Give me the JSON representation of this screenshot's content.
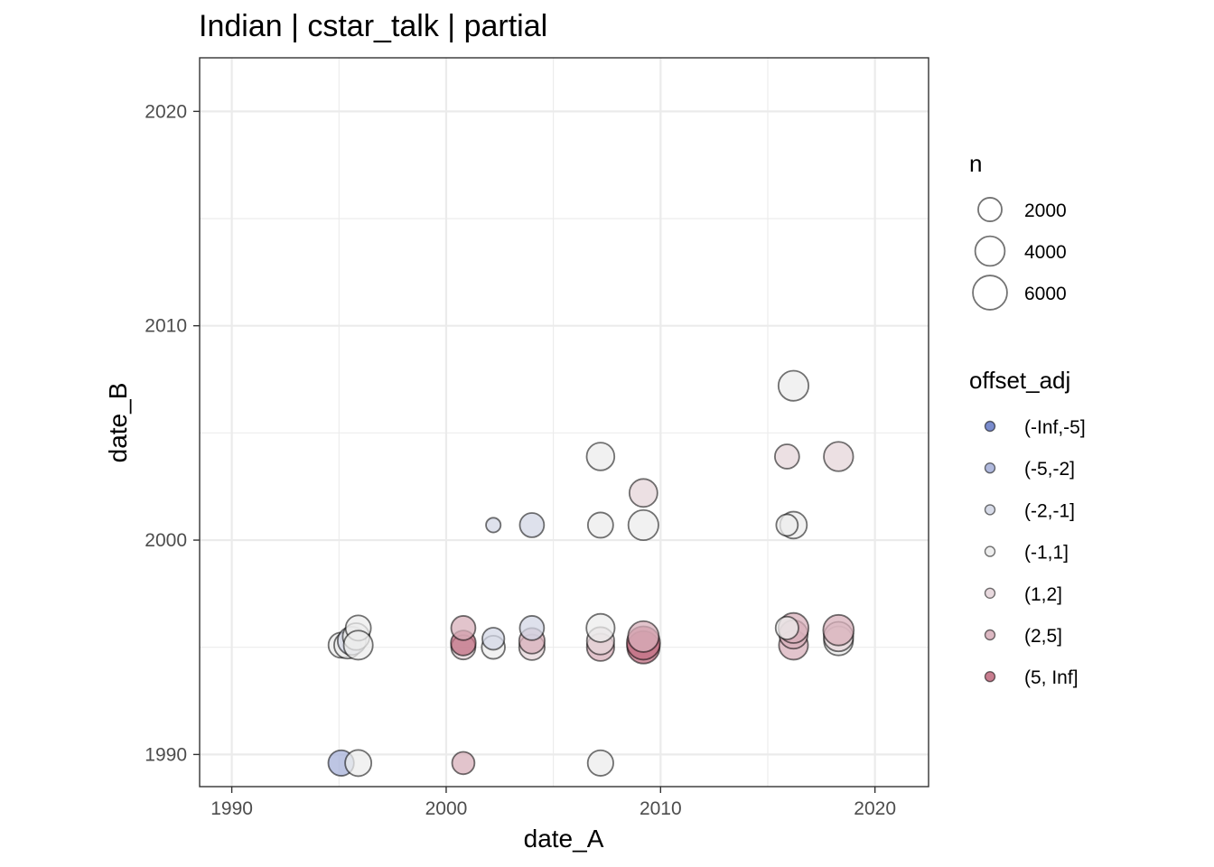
{
  "chart_data": {
    "type": "scatter",
    "title": "Indian | cstar_talk | partial",
    "xlabel": "date_A",
    "ylabel": "date_B",
    "xlim": [
      1988.5,
      2022.5
    ],
    "ylim": [
      1988.5,
      2022.5
    ],
    "x_ticks": [
      1990,
      2000,
      2010,
      2020
    ],
    "y_ticks": [
      1990,
      2000,
      2010,
      2020
    ],
    "grid": true,
    "size_legend": {
      "title": "n",
      "entries": [
        {
          "label": "2000",
          "value": 2000
        },
        {
          "label": "4000",
          "value": 4000
        },
        {
          "label": "6000",
          "value": 6000
        }
      ]
    },
    "color_legend": {
      "title": "offset_adj",
      "entries": [
        {
          "label": "(-Inf,-5]",
          "color": "#6b80c8"
        },
        {
          "label": "(-5,-2]",
          "color": "#a7b1d9"
        },
        {
          "label": "(-2,-1]",
          "color": "#d3d7e6"
        },
        {
          "label": "(-1,1]",
          "color": "#ececec"
        },
        {
          "label": "(1,2]",
          "color": "#e6d5da"
        },
        {
          "label": "(2,5]",
          "color": "#d8b0bb"
        },
        {
          "label": "(5, Inf]",
          "color": "#c26f83"
        }
      ]
    },
    "points": [
      {
        "x": 1995.1,
        "y": 1995.1,
        "n": 2500,
        "group": "(-1,1]"
      },
      {
        "x": 1995.4,
        "y": 1995.1,
        "n": 3000,
        "group": "(-1,1]"
      },
      {
        "x": 1995.6,
        "y": 1995.3,
        "n": 3500,
        "group": "(-2,-1]"
      },
      {
        "x": 1995.8,
        "y": 1995.5,
        "n": 3000,
        "group": "(-1,1]"
      },
      {
        "x": 1995.9,
        "y": 1995.9,
        "n": 2500,
        "group": "(-1,1]"
      },
      {
        "x": 1995.9,
        "y": 1995.1,
        "n": 3800,
        "group": "(-1,1]"
      },
      {
        "x": 1995.1,
        "y": 1989.6,
        "n": 2600,
        "group": "(-5,-2]"
      },
      {
        "x": 1995.9,
        "y": 1989.6,
        "n": 2800,
        "group": "(-1,1]"
      },
      {
        "x": 2000.8,
        "y": 1995.0,
        "n": 2200,
        "group": "(1,2]"
      },
      {
        "x": 2000.8,
        "y": 1995.2,
        "n": 2400,
        "group": "(5, Inf]"
      },
      {
        "x": 2000.8,
        "y": 1995.9,
        "n": 2200,
        "group": "(2,5]"
      },
      {
        "x": 2000.8,
        "y": 1989.6,
        "n": 1700,
        "group": "(2,5]"
      },
      {
        "x": 2002.2,
        "y": 1995.0,
        "n": 1900,
        "group": "(-1,1]"
      },
      {
        "x": 2002.2,
        "y": 1995.4,
        "n": 1600,
        "group": "(-2,-1]"
      },
      {
        "x": 2002.2,
        "y": 2000.7,
        "n": 300,
        "group": "(-2,-1]"
      },
      {
        "x": 2004.0,
        "y": 1995.0,
        "n": 2600,
        "group": "(1,2]"
      },
      {
        "x": 2004.0,
        "y": 1995.3,
        "n": 2600,
        "group": "(2,5]"
      },
      {
        "x": 2004.0,
        "y": 1995.9,
        "n": 2200,
        "group": "(-2,-1]"
      },
      {
        "x": 2004.0,
        "y": 2000.7,
        "n": 2200,
        "group": "(-2,-1]"
      },
      {
        "x": 2007.2,
        "y": 1995.0,
        "n": 3200,
        "group": "(2,5]"
      },
      {
        "x": 2007.2,
        "y": 1995.3,
        "n": 3200,
        "group": "(1,2]"
      },
      {
        "x": 2007.2,
        "y": 1995.9,
        "n": 3500,
        "group": "(-1,1]"
      },
      {
        "x": 2007.2,
        "y": 2000.7,
        "n": 2500,
        "group": "(-1,1]"
      },
      {
        "x": 2007.2,
        "y": 2003.9,
        "n": 3300,
        "group": "(-1,1]"
      },
      {
        "x": 2007.2,
        "y": 1989.6,
        "n": 2600,
        "group": "(-1,1]"
      },
      {
        "x": 2009.2,
        "y": 1995.0,
        "n": 5200,
        "group": "(5, Inf]"
      },
      {
        "x": 2009.2,
        "y": 1995.2,
        "n": 5600,
        "group": "(5, Inf]"
      },
      {
        "x": 2009.2,
        "y": 1995.5,
        "n": 4500,
        "group": "(2,5]"
      },
      {
        "x": 2009.2,
        "y": 2000.7,
        "n": 4200,
        "group": "(-1,1]"
      },
      {
        "x": 2009.2,
        "y": 2002.2,
        "n": 3400,
        "group": "(1,2]"
      },
      {
        "x": 2016.2,
        "y": 1995.1,
        "n": 3800,
        "group": "(2,5]"
      },
      {
        "x": 2016.2,
        "y": 1995.6,
        "n": 3600,
        "group": "(2,5]"
      },
      {
        "x": 2016.2,
        "y": 1995.9,
        "n": 4200,
        "group": "(2,5]"
      },
      {
        "x": 2015.9,
        "y": 1995.9,
        "n": 1800,
        "group": "(-1,1]"
      },
      {
        "x": 2016.2,
        "y": 2000.7,
        "n": 3000,
        "group": "(-1,1]"
      },
      {
        "x": 2015.9,
        "y": 2000.7,
        "n": 1500,
        "group": "(-1,1]"
      },
      {
        "x": 2015.9,
        "y": 2003.9,
        "n": 2200,
        "group": "(1,2]"
      },
      {
        "x": 2016.2,
        "y": 2007.2,
        "n": 4200,
        "group": "(-1,1]"
      },
      {
        "x": 2018.3,
        "y": 1995.3,
        "n": 3800,
        "group": "(-1,1]"
      },
      {
        "x": 2018.3,
        "y": 1995.5,
        "n": 4000,
        "group": "(1,2]"
      },
      {
        "x": 2018.3,
        "y": 1995.8,
        "n": 4400,
        "group": "(2,5]"
      },
      {
        "x": 2018.3,
        "y": 2003.9,
        "n": 3900,
        "group": "(1,2]"
      }
    ]
  }
}
